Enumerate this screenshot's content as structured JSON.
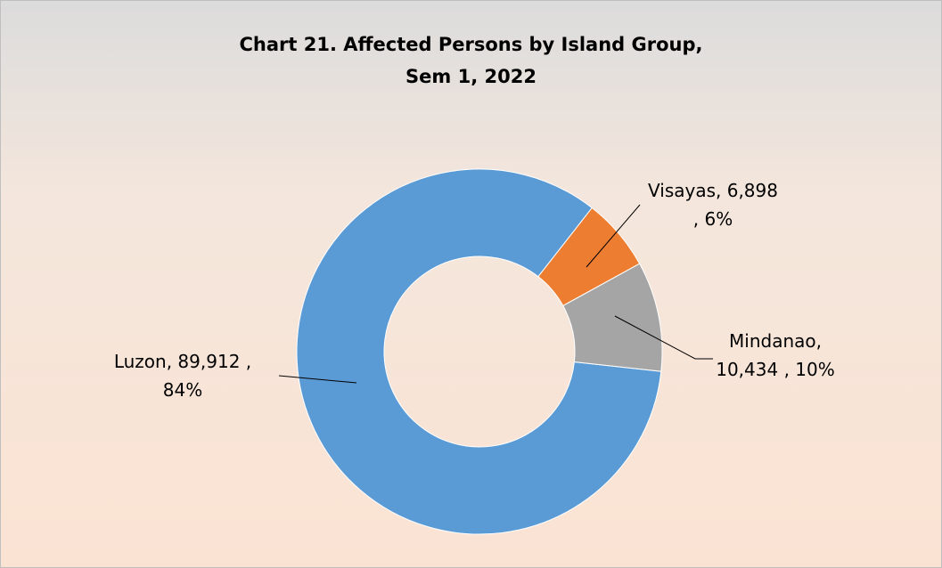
{
  "chart_data": {
    "type": "donut",
    "title": "Chart 21. Affected Persons by Island Group,",
    "subtitle": "Sem 1, 2022",
    "values": [
      89912,
      6898,
      10434
    ],
    "value_labels": [
      "Luzon, 89,912 ,\n84%",
      "Visayas, 6,898\n, 6%",
      "Mindanao,\n10,434 , 10%"
    ],
    "colors": [
      "#5b9bd5",
      "#ed7d31",
      "#a5a5a5"
    ]
  }
}
